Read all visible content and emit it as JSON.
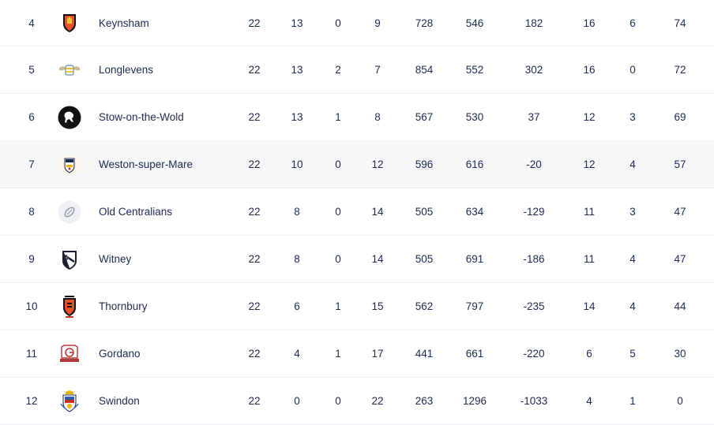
{
  "rows": [
    {
      "pos": "4",
      "team": "Keynsham",
      "crest": "keynsham-crest-icon",
      "p": "22",
      "w": "13",
      "d": "0",
      "l": "9",
      "pf": "728",
      "pa": "546",
      "pd": "182",
      "tb": "16",
      "lb": "6",
      "pts": "74"
    },
    {
      "pos": "5",
      "team": "Longlevens",
      "crest": "longlevens-crest-icon",
      "p": "22",
      "w": "13",
      "d": "2",
      "l": "7",
      "pf": "854",
      "pa": "552",
      "pd": "302",
      "tb": "16",
      "lb": "0",
      "pts": "72"
    },
    {
      "pos": "6",
      "team": "Stow-on-the-Wold",
      "crest": "stow-on-the-wold-crest-icon",
      "p": "22",
      "w": "13",
      "d": "1",
      "l": "8",
      "pf": "567",
      "pa": "530",
      "pd": "37",
      "tb": "12",
      "lb": "3",
      "pts": "69"
    },
    {
      "pos": "7",
      "team": "Weston-super-Mare",
      "crest": "weston-super-mare-crest-icon",
      "p": "22",
      "w": "10",
      "d": "0",
      "l": "12",
      "pf": "596",
      "pa": "616",
      "pd": "-20",
      "tb": "12",
      "lb": "4",
      "pts": "57"
    },
    {
      "pos": "8",
      "team": "Old Centralians",
      "crest": "rugby-ball-placeholder-icon",
      "p": "22",
      "w": "8",
      "d": "0",
      "l": "14",
      "pf": "505",
      "pa": "634",
      "pd": "-129",
      "tb": "11",
      "lb": "3",
      "pts": "47"
    },
    {
      "pos": "9",
      "team": "Witney",
      "crest": "witney-crest-icon",
      "p": "22",
      "w": "8",
      "d": "0",
      "l": "14",
      "pf": "505",
      "pa": "691",
      "pd": "-186",
      "tb": "11",
      "lb": "4",
      "pts": "47"
    },
    {
      "pos": "10",
      "team": "Thornbury",
      "crest": "thornbury-crest-icon",
      "p": "22",
      "w": "6",
      "d": "1",
      "l": "15",
      "pf": "562",
      "pa": "797",
      "pd": "-235",
      "tb": "14",
      "lb": "4",
      "pts": "44"
    },
    {
      "pos": "11",
      "team": "Gordano",
      "crest": "gordano-crest-icon",
      "p": "22",
      "w": "4",
      "d": "1",
      "l": "17",
      "pf": "441",
      "pa": "661",
      "pd": "-220",
      "tb": "6",
      "lb": "5",
      "pts": "30"
    },
    {
      "pos": "12",
      "team": "Swindon",
      "crest": "swindon-crest-icon",
      "p": "22",
      "w": "0",
      "d": "0",
      "l": "22",
      "pf": "263",
      "pa": "1296",
      "pd": "-1033",
      "tb": "4",
      "lb": "1",
      "pts": "0"
    }
  ],
  "colors": {
    "text": "#1c2a52",
    "row_highlight": "#f6f7f9",
    "divider": "#eceef2"
  }
}
